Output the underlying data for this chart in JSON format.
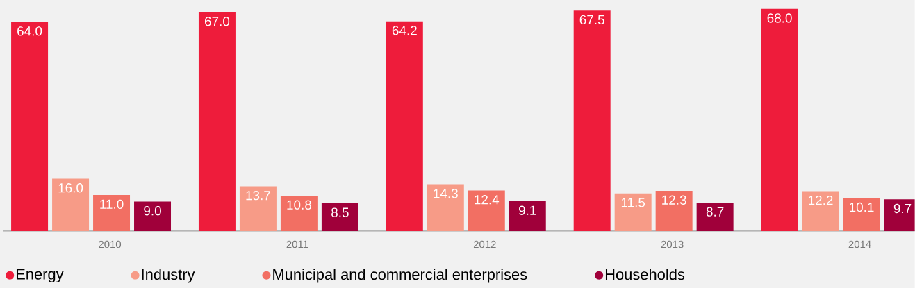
{
  "chart_data": {
    "type": "bar",
    "categories": [
      "2010",
      "2011",
      "2012",
      "2013",
      "2014"
    ],
    "series": [
      {
        "name": "Energy",
        "color": "#ee1c3b",
        "values": [
          64.0,
          67.0,
          64.2,
          67.5,
          68.0
        ],
        "value_labels": [
          "64.0",
          "67.0",
          "64.2",
          "67.5",
          "68.0"
        ]
      },
      {
        "name": "Industry",
        "color": "#f79b87",
        "values": [
          16.0,
          13.7,
          14.3,
          11.5,
          12.2
        ],
        "value_labels": [
          "16.0",
          "13.7",
          "14.3",
          "11.5",
          "12.2"
        ]
      },
      {
        "name": "Municipal and commercial enterprises",
        "color": "#f26f63",
        "values": [
          11.0,
          10.8,
          12.4,
          12.3,
          10.1
        ],
        "value_labels": [
          "11.0",
          "10.8",
          "12.4",
          "12.3",
          "10.1"
        ]
      },
      {
        "name": "Households",
        "color": "#a0003a",
        "values": [
          9.0,
          8.5,
          9.1,
          8.7,
          9.7
        ],
        "value_labels": [
          "9.0",
          "8.5",
          "9.1",
          "8.7",
          "9.7"
        ]
      }
    ],
    "legend": "bottom left",
    "grid": false,
    "tick_labels": "x"
  }
}
